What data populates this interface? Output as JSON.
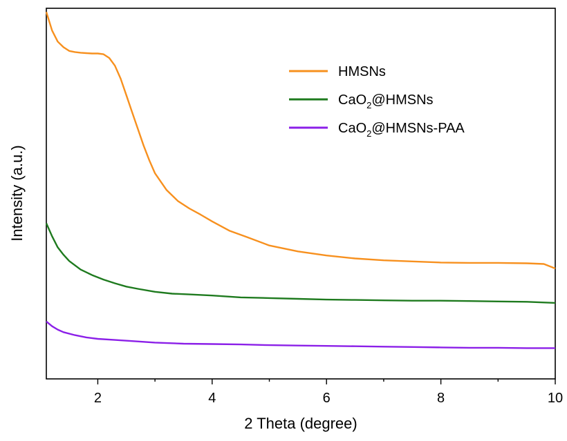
{
  "chart_data": {
    "type": "line",
    "xlabel": "2 Theta (degree)",
    "ylabel": "Intensity (a.u.)",
    "xlim": [
      1.1,
      10
    ],
    "ylim": [
      0,
      100
    ],
    "xticks": [
      2,
      4,
      6,
      8,
      10
    ],
    "xtick_labels": [
      "2",
      "4",
      "6",
      "8",
      "10"
    ],
    "yticks_shown": false,
    "grid": false,
    "legend_position": "top-right",
    "series": [
      {
        "name": "HMSNs",
        "color": "#f7901e",
        "x": [
          1.1,
          1.2,
          1.3,
          1.4,
          1.5,
          1.6,
          1.7,
          1.8,
          1.9,
          2.0,
          2.1,
          2.2,
          2.3,
          2.4,
          2.5,
          2.6,
          2.7,
          2.8,
          2.9,
          3.0,
          3.2,
          3.4,
          3.6,
          3.8,
          4.0,
          4.3,
          4.6,
          5.0,
          5.5,
          6.0,
          6.5,
          7.0,
          7.5,
          8.0,
          8.5,
          9.0,
          9.5,
          9.8,
          10.0
        ],
        "values": [
          99,
          94,
          91,
          89.5,
          88.5,
          88.2,
          88.0,
          87.9,
          87.8,
          87.8,
          87.6,
          86.6,
          84.5,
          81.0,
          76.5,
          72.0,
          67.5,
          63.0,
          59.0,
          55.5,
          51.0,
          48.0,
          46.0,
          44.3,
          42.5,
          40.0,
          38.3,
          36.0,
          34.4,
          33.3,
          32.5,
          32.0,
          31.7,
          31.4,
          31.3,
          31.3,
          31.2,
          31.0,
          29.8
        ]
      },
      {
        "name": "CaO2@HMSNs",
        "color": "#1e7a1e",
        "x": [
          1.1,
          1.2,
          1.3,
          1.4,
          1.5,
          1.7,
          1.9,
          2.1,
          2.3,
          2.5,
          2.7,
          3.0,
          3.3,
          3.6,
          4.0,
          4.5,
          5.0,
          5.5,
          6.0,
          6.5,
          7.0,
          7.5,
          8.0,
          8.5,
          9.0,
          9.5,
          10.0
        ],
        "values": [
          42,
          38.5,
          35.5,
          33.5,
          31.8,
          29.5,
          28.0,
          26.8,
          25.8,
          24.9,
          24.3,
          23.5,
          23.0,
          22.8,
          22.5,
          22.0,
          21.8,
          21.6,
          21.4,
          21.3,
          21.2,
          21.1,
          21.1,
          21.0,
          20.9,
          20.8,
          20.5
        ]
      },
      {
        "name": "CaO2@HMSNs-PAA",
        "color": "#8b1fe8",
        "x": [
          1.1,
          1.2,
          1.3,
          1.4,
          1.6,
          1.8,
          2.0,
          2.3,
          2.6,
          3.0,
          3.5,
          4.0,
          4.5,
          5.0,
          5.5,
          6.0,
          6.5,
          7.0,
          7.5,
          8.0,
          8.5,
          9.0,
          9.5,
          10.0
        ],
        "values": [
          15.5,
          14.2,
          13.3,
          12.6,
          11.8,
          11.2,
          10.8,
          10.5,
          10.2,
          9.8,
          9.5,
          9.4,
          9.3,
          9.1,
          9.0,
          8.9,
          8.8,
          8.7,
          8.6,
          8.5,
          8.4,
          8.4,
          8.3,
          8.3
        ]
      }
    ]
  },
  "legend": [
    {
      "pre": "HMSNs",
      "sub": "",
      "post": ""
    },
    {
      "pre": "CaO",
      "sub": "2",
      "post": "@HMSNs"
    },
    {
      "pre": "CaO",
      "sub": "2",
      "post": "@HMSNs-PAA"
    }
  ]
}
